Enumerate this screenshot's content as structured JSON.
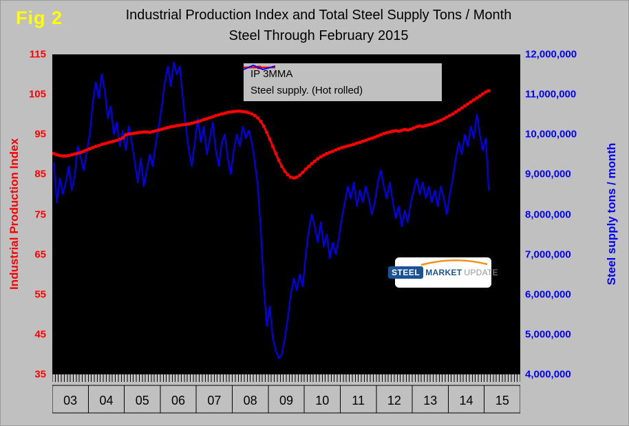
{
  "figure_label": "Fig 2",
  "title": {
    "line1": "Industrial Production Index and Total Steel Supply Tons / Month",
    "line2": "Steel Through February 2015"
  },
  "left_axis": {
    "title": "Industrial Production Index",
    "color": "#ff0000",
    "ticks": [
      "115",
      "105",
      "95",
      "85",
      "75",
      "65",
      "55",
      "45",
      "35"
    ]
  },
  "right_axis": {
    "title": "Steel supply tons / month",
    "color": "#0000ff",
    "ticks": [
      "12,000,000",
      "11,000,000",
      "10,000,000",
      "9,000,000",
      "8,000,000",
      "7,000,000",
      "6,000,000",
      "5,000,000",
      "4,000,000"
    ]
  },
  "x_axis": {
    "years": [
      "03",
      "04",
      "05",
      "06",
      "07",
      "08",
      "09",
      "10",
      "11",
      "12",
      "13",
      "14",
      "15"
    ]
  },
  "legend": {
    "items": [
      {
        "label": "IP 3MMA",
        "color": "#ff0000"
      },
      {
        "label": "Steel supply. (Hot rolled)",
        "color": "#0000ff"
      }
    ]
  },
  "logo": {
    "steel": "STEEL",
    "market": "MARKET",
    "update": "UPDATE",
    "blue": "#1a5296",
    "gray": "#8e979e",
    "accent_color": "#f0941d"
  },
  "colors": {
    "background": "#c0c0c0",
    "plot_background": "#000000",
    "fig_label": "#ffff00"
  },
  "chart_data": {
    "type": "line",
    "title": "Industrial Production Index and Total Steel Supply Tons / Month — Steel Through February 2015",
    "x_start": "2003-01",
    "x_end": "2015-02",
    "x_axis_total_months": 156,
    "months_per_year": 12,
    "left_ylim": [
      35,
      115
    ],
    "right_ylim": [
      4000000,
      12000000
    ],
    "grid": false,
    "legend_position": "top-center",
    "series": [
      {
        "name": "IP 3MMA",
        "axis": "left",
        "color": "#ff0000",
        "marker": "square",
        "values": [
          90.2,
          89.9,
          89.7,
          89.6,
          89.6,
          89.7,
          89.9,
          90.1,
          90.3,
          90.5,
          90.8,
          91.1,
          91.4,
          91.7,
          92.0,
          92.2,
          92.5,
          92.7,
          92.9,
          93.1,
          93.3,
          93.5,
          93.8,
          94.1,
          94.9,
          95.1,
          95.2,
          95.3,
          95.4,
          95.5,
          95.6,
          95.6,
          95.5,
          95.7,
          95.9,
          96.1,
          96.3,
          96.5,
          96.7,
          96.9,
          97.0,
          97.2,
          97.3,
          97.4,
          97.5,
          97.6,
          97.8,
          98.0,
          98.2,
          98.4,
          98.7,
          98.9,
          99.2,
          99.4,
          99.7,
          99.9,
          100.1,
          100.3,
          100.5,
          100.6,
          100.7,
          100.8,
          100.8,
          100.7,
          100.6,
          100.4,
          100.1,
          99.7,
          99.1,
          98.2,
          97.0,
          95.5,
          93.8,
          92.0,
          90.2,
          88.5,
          87.0,
          85.8,
          84.9,
          84.3,
          84.1,
          84.3,
          84.8,
          85.5,
          86.3,
          87.0,
          87.7,
          88.3,
          88.9,
          89.4,
          89.8,
          90.2,
          90.5,
          90.8,
          91.1,
          91.4,
          91.7,
          91.9,
          92.1,
          92.3,
          92.5,
          92.8,
          93.0,
          93.3,
          93.5,
          93.8,
          94.0,
          94.3,
          94.6,
          94.9,
          95.2,
          95.4,
          95.6,
          95.8,
          95.9,
          95.8,
          96.0,
          96.2,
          96.1,
          96.3,
          96.6,
          96.9,
          97.1,
          97.0,
          97.2,
          97.4,
          97.6,
          97.9,
          98.2,
          98.5,
          98.9,
          99.3,
          99.7,
          100.1,
          100.6,
          101.1,
          101.6,
          102.1,
          102.6,
          103.1,
          103.6,
          104.1,
          104.6,
          105.1,
          105.6,
          105.9
        ]
      },
      {
        "name": "Steel supply. (Hot rolled)",
        "axis": "right",
        "color": "#0000ff",
        "unit": "million tons / month",
        "values_millions": [
          9.3,
          8.3,
          8.9,
          8.5,
          8.8,
          9.2,
          8.6,
          9.0,
          9.7,
          9.4,
          9.1,
          9.6,
          10.0,
          10.8,
          11.3,
          10.9,
          11.5,
          11.1,
          10.4,
          10.7,
          10.0,
          10.3,
          9.7,
          10.1,
          9.6,
          10.2,
          9.8,
          9.3,
          8.8,
          9.4,
          8.7,
          9.1,
          9.5,
          9.2,
          9.8,
          10.2,
          10.7,
          11.3,
          11.7,
          11.2,
          11.8,
          11.5,
          11.7,
          10.9,
          10.2,
          9.6,
          9.2,
          9.8,
          10.4,
          9.8,
          10.2,
          9.5,
          9.9,
          10.3,
          9.6,
          9.2,
          9.8,
          10.0,
          9.4,
          9.0,
          9.6,
          10.0,
          9.7,
          10.2,
          9.9,
          10.1,
          9.8,
          9.3,
          8.7,
          7.6,
          6.2,
          5.2,
          5.7,
          4.9,
          4.6,
          4.4,
          4.5,
          4.9,
          5.4,
          6.0,
          6.4,
          6.1,
          6.5,
          6.2,
          7.0,
          7.6,
          8.0,
          7.7,
          7.3,
          7.8,
          7.2,
          7.5,
          6.9,
          7.3,
          7.0,
          7.4,
          7.9,
          8.3,
          8.7,
          8.4,
          8.8,
          8.2,
          8.6,
          8.3,
          8.7,
          8.4,
          8.0,
          8.3,
          8.8,
          9.1,
          8.7,
          8.4,
          8.8,
          8.3,
          7.9,
          8.2,
          7.7,
          8.1,
          7.8,
          8.3,
          8.6,
          8.9,
          8.5,
          8.8,
          8.4,
          8.7,
          8.3,
          8.6,
          8.2,
          8.7,
          8.4,
          8.0,
          8.5,
          8.9,
          9.4,
          9.8,
          9.5,
          10.0,
          9.7,
          10.2,
          9.9,
          10.5,
          10.0,
          9.6,
          9.9,
          8.6
        ]
      }
    ]
  }
}
